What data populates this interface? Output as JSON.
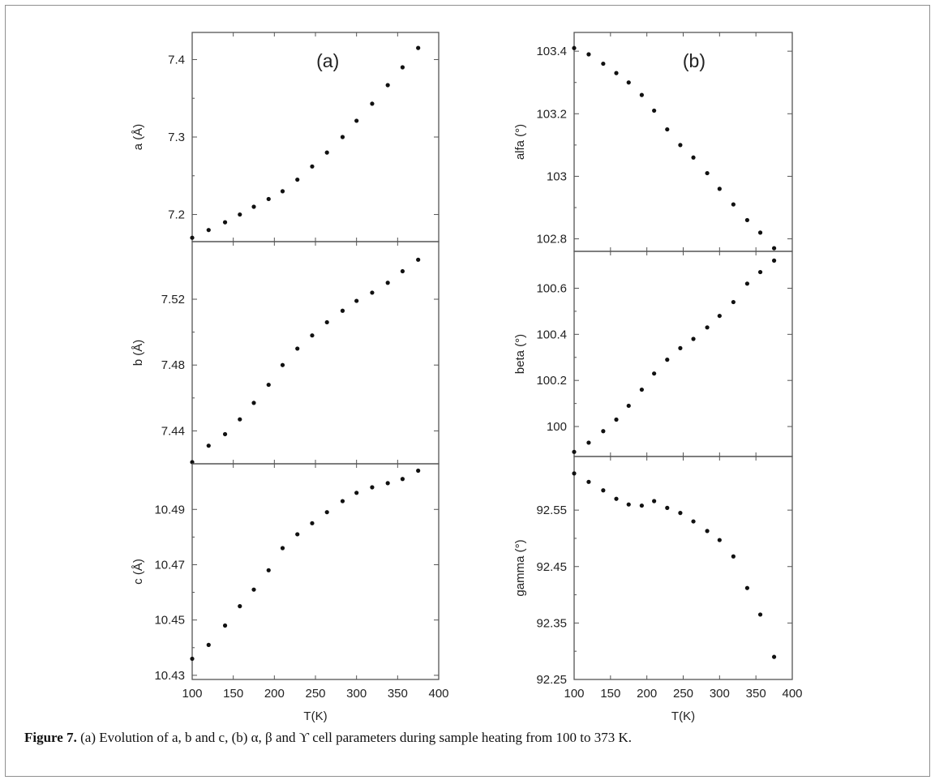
{
  "caption": {
    "label": "Figure 7.",
    "text": "(a) Evolution of a, b and c, (b) α, β and ϒ cell parameters during sample heating from 100 to 373 K."
  },
  "chart_data": [
    {
      "type": "scatter",
      "panel": "a",
      "panel_label": "(a)",
      "ylabel": "a (Å)",
      "xlabel": "",
      "xlim": [
        100,
        400
      ],
      "ylim": [
        7.165,
        7.435
      ],
      "yticks": [
        7.2,
        7.3,
        7.4
      ],
      "ytick_labels": [
        "7.2",
        "7.3",
        "7.4"
      ],
      "x": [
        100,
        120,
        140,
        158,
        175,
        193,
        210,
        228,
        246,
        264,
        283,
        300,
        319,
        338,
        356,
        375
      ],
      "y": [
        7.17,
        7.18,
        7.19,
        7.2,
        7.21,
        7.22,
        7.23,
        7.245,
        7.262,
        7.28,
        7.3,
        7.321,
        7.343,
        7.367,
        7.39,
        7.415
      ]
    },
    {
      "type": "scatter",
      "panel": "b-left",
      "panel_label": "",
      "ylabel": "b (Å)",
      "xlabel": "",
      "xlim": [
        100,
        400
      ],
      "ylim": [
        7.42,
        7.555
      ],
      "yticks": [
        7.44,
        7.48,
        7.52
      ],
      "ytick_labels": [
        "7.44",
        "7.48",
        "7.52"
      ],
      "x": [
        100,
        120,
        140,
        158,
        175,
        193,
        210,
        228,
        246,
        264,
        283,
        300,
        319,
        338,
        356,
        375
      ],
      "y": [
        7.421,
        7.431,
        7.438,
        7.447,
        7.457,
        7.468,
        7.48,
        7.49,
        7.498,
        7.506,
        7.513,
        7.519,
        7.524,
        7.53,
        7.537,
        7.544
      ]
    },
    {
      "type": "scatter",
      "panel": "c",
      "panel_label": "",
      "ylabel": "c (Å)",
      "xlabel": "T(K)",
      "xlim": [
        100,
        400
      ],
      "ylim": [
        10.4285,
        10.5065
      ],
      "yticks": [
        10.43,
        10.45,
        10.47,
        10.49
      ],
      "ytick_labels": [
        "10.43",
        "10.45",
        "10.47",
        "10.49"
      ],
      "xticks": [
        100,
        150,
        200,
        250,
        300,
        350,
        400
      ],
      "xtick_labels": [
        "100",
        "150",
        "200",
        "250",
        "300",
        "350",
        "400"
      ],
      "x": [
        100,
        120,
        140,
        158,
        175,
        193,
        210,
        228,
        246,
        264,
        283,
        300,
        319,
        338,
        356,
        375
      ],
      "y": [
        10.436,
        10.441,
        10.448,
        10.455,
        10.461,
        10.468,
        10.476,
        10.481,
        10.485,
        10.489,
        10.493,
        10.496,
        10.498,
        10.4995,
        10.501,
        10.504
      ]
    },
    {
      "type": "scatter",
      "panel": "alfa",
      "panel_label": "(b)",
      "ylabel": "alfa (°)",
      "xlabel": "",
      "xlim": [
        100,
        400
      ],
      "ylim": [
        102.76,
        103.46
      ],
      "yticks": [
        102.8,
        103.0,
        103.2,
        103.4
      ],
      "ytick_labels": [
        "102.8",
        "103",
        "103.2",
        "103.4"
      ],
      "x": [
        100,
        120,
        140,
        158,
        175,
        193,
        210,
        228,
        246,
        264,
        283,
        300,
        319,
        338,
        356,
        375
      ],
      "y": [
        103.41,
        103.39,
        103.36,
        103.33,
        103.3,
        103.26,
        103.21,
        103.15,
        103.1,
        103.06,
        103.01,
        102.96,
        102.91,
        102.86,
        102.82,
        102.77
      ]
    },
    {
      "type": "scatter",
      "panel": "beta",
      "panel_label": "",
      "ylabel": "beta (°)",
      "xlabel": "",
      "xlim": [
        100,
        400
      ],
      "ylim": [
        99.87,
        100.76
      ],
      "yticks": [
        100.0,
        100.2,
        100.4,
        100.6
      ],
      "ytick_labels": [
        "100",
        "100.2",
        "100.4",
        "100.6"
      ],
      "x": [
        100,
        120,
        140,
        158,
        175,
        193,
        210,
        228,
        246,
        264,
        283,
        300,
        319,
        338,
        356,
        375
      ],
      "y": [
        99.89,
        99.93,
        99.98,
        100.03,
        100.09,
        100.16,
        100.23,
        100.29,
        100.34,
        100.38,
        100.43,
        100.48,
        100.54,
        100.62,
        100.67,
        100.72
      ]
    },
    {
      "type": "scatter",
      "panel": "gamma",
      "panel_label": "",
      "ylabel": "gamma (°)",
      "xlabel": "T(K)",
      "xlim": [
        100,
        400
      ],
      "ylim": [
        92.25,
        92.645
      ],
      "yticks": [
        92.25,
        92.35,
        92.45,
        92.55
      ],
      "ytick_labels": [
        "92.25",
        "92.35",
        "92.45",
        "92.55"
      ],
      "xticks": [
        100,
        150,
        200,
        250,
        300,
        350,
        400
      ],
      "xtick_labels": [
        "100",
        "150",
        "200",
        "250",
        "300",
        "350",
        "400"
      ],
      "x": [
        100,
        120,
        140,
        158,
        175,
        193,
        210,
        228,
        246,
        264,
        283,
        300,
        319,
        338,
        356,
        375
      ],
      "y": [
        92.615,
        92.6,
        92.585,
        92.57,
        92.56,
        92.558,
        92.566,
        92.554,
        92.545,
        92.53,
        92.513,
        92.497,
        92.468,
        92.412,
        92.365,
        92.29
      ]
    }
  ]
}
